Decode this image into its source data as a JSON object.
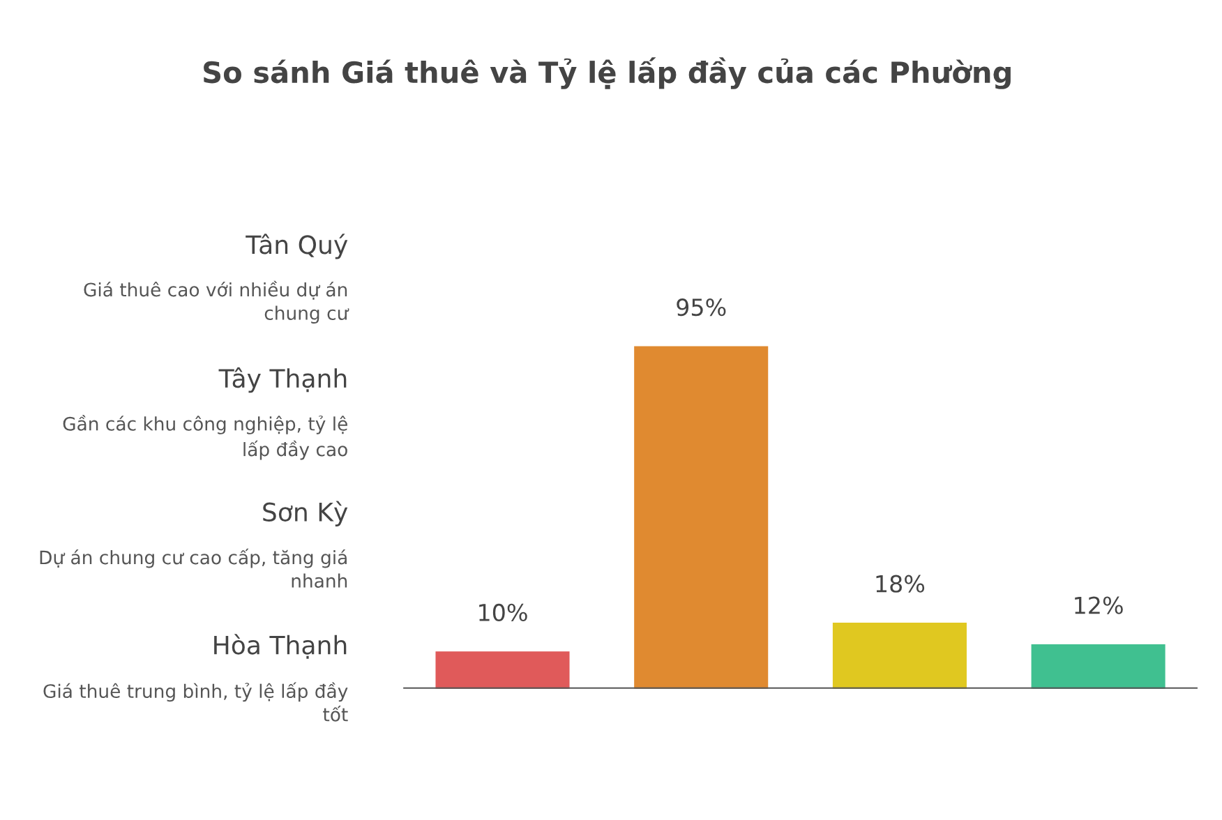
{
  "chart_data": {
    "type": "bar",
    "title": "So sánh Giá thuê và Tỷ lệ lấp đầy của các Phường",
    "categories": [
      null,
      null,
      null,
      null
    ],
    "values": [
      10,
      95,
      18,
      12
    ],
    "colors": [
      "#e05a5a",
      "#e08a30",
      "#e0c820",
      "#40c090"
    ],
    "data_labels": true,
    "value_labels": [
      "10%",
      "95%",
      "18%",
      "12%"
    ],
    "annotations": [
      "Tân Quý",
      "Giá thuê cao với nhiều dự án\nchung cư",
      "Tây Thạnh",
      "Gần các khu công nghiệp, tỷ lệ\nlấp đầy cao",
      "Sơn Kỳ",
      "Dự án chung cư cao cấp, tăng giá\nnhanh",
      "Hòa Thạnh",
      "Giá thuê trung bình, tỷ lệ lấp đầy\ntốt"
    ]
  }
}
